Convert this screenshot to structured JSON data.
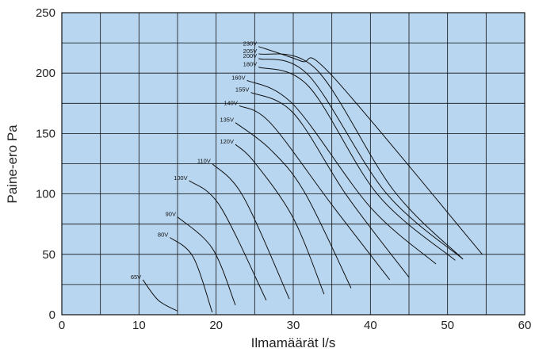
{
  "chart_data": {
    "type": "line",
    "xlabel": "Ilmamäärät l/s",
    "ylabel": "Paine-ero Pa",
    "xlim": [
      0,
      60
    ],
    "ylim": [
      0,
      250
    ],
    "xticks": [
      0,
      10,
      20,
      30,
      40,
      50,
      60
    ],
    "yticks": [
      0,
      50,
      100,
      150,
      200,
      250
    ],
    "x_grid_step": 5,
    "y_grid_step": 25,
    "grid": true,
    "plot_background": "#b8d6f0",
    "line_color": "#111111",
    "series": [
      {
        "name": "65V",
        "points": [
          [
            10.5,
            29
          ],
          [
            12.5,
            12
          ],
          [
            15,
            3
          ]
        ]
      },
      {
        "name": "80V",
        "points": [
          [
            14,
            64
          ],
          [
            17,
            48
          ],
          [
            19.5,
            2
          ]
        ]
      },
      {
        "name": "90V",
        "points": [
          [
            15,
            81
          ],
          [
            19.5,
            55
          ],
          [
            22.5,
            8
          ]
        ]
      },
      {
        "name": "100V",
        "points": [
          [
            16.5,
            111
          ],
          [
            20.5,
            90
          ],
          [
            26.5,
            12
          ]
        ]
      },
      {
        "name": "110V",
        "points": [
          [
            19.5,
            125
          ],
          [
            23.5,
            98
          ],
          [
            29.5,
            13
          ]
        ]
      },
      {
        "name": "120V",
        "points": [
          [
            22.5,
            141
          ],
          [
            25,
            126
          ],
          [
            30,
            80
          ],
          [
            34,
            17
          ]
        ]
      },
      {
        "name": "135V",
        "points": [
          [
            22.5,
            159
          ],
          [
            27,
            137
          ],
          [
            31.5,
            101
          ],
          [
            37.5,
            22
          ]
        ]
      },
      {
        "name": "140V",
        "points": [
          [
            23,
            173
          ],
          [
            27,
            159
          ],
          [
            35,
            91
          ],
          [
            42.5,
            29
          ]
        ]
      },
      {
        "name": "155V",
        "points": [
          [
            24.5,
            184
          ],
          [
            30,
            167
          ],
          [
            37,
            98
          ],
          [
            45,
            31
          ]
        ]
      },
      {
        "name": "160V",
        "points": [
          [
            24,
            194
          ],
          [
            30,
            174
          ],
          [
            40,
            89
          ],
          [
            48.5,
            42
          ]
        ]
      },
      {
        "name": "180V",
        "points": [
          [
            25.5,
            205
          ],
          [
            32,
            189
          ],
          [
            41,
            99
          ],
          [
            51,
            45
          ]
        ]
      },
      {
        "name": "200V",
        "points": [
          [
            25.5,
            212
          ],
          [
            32,
            198
          ],
          [
            42,
            101
          ],
          [
            52,
            46
          ]
        ]
      },
      {
        "name": "205V",
        "points": [
          [
            25.5,
            216
          ],
          [
            33,
            203
          ],
          [
            43,
            103
          ],
          [
            52,
            46
          ]
        ]
      },
      {
        "name": "230V",
        "points": [
          [
            25.5,
            222
          ],
          [
            31,
            210
          ],
          [
            35,
            198
          ],
          [
            54.5,
            50
          ]
        ]
      }
    ]
  }
}
